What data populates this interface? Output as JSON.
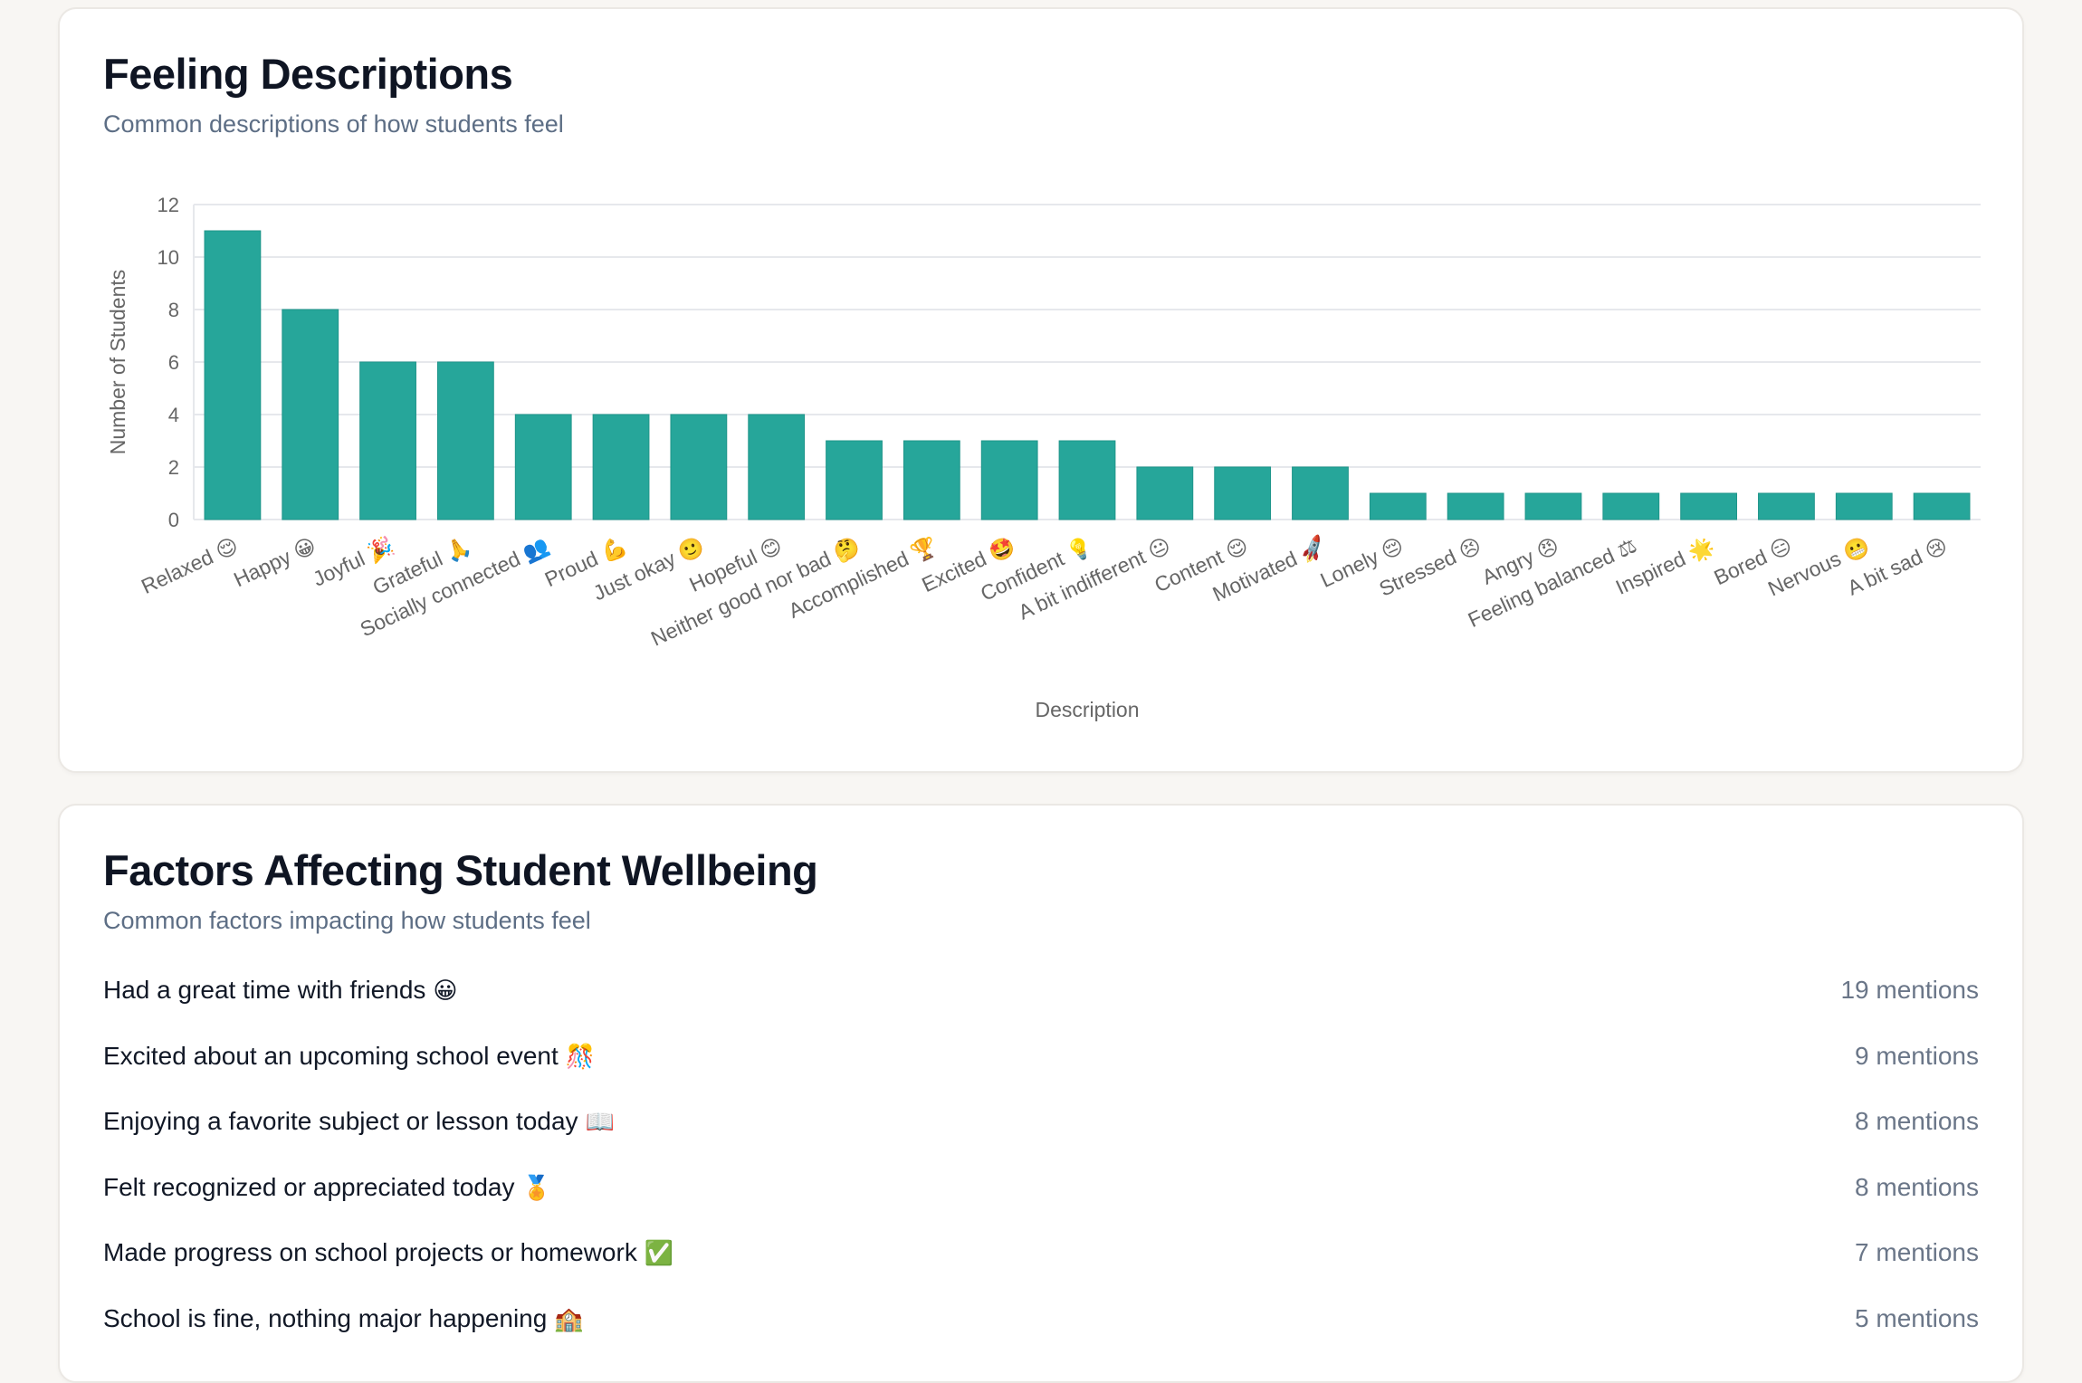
{
  "feeling_card": {
    "title": "Feeling Descriptions",
    "subtitle": "Common descriptions of how students feel"
  },
  "chart_data": {
    "type": "bar",
    "xlabel": "Description",
    "ylabel": "Number of Students",
    "ylim": [
      0,
      12
    ],
    "yticks": [
      0,
      2,
      4,
      6,
      8,
      10,
      12
    ],
    "grid": true,
    "bar_color": "#26a69a",
    "categories": [
      "Relaxed 😌",
      "Happy 😀",
      "Joyful 🎉",
      "Grateful 🙏",
      "Socially connected 👥",
      "Proud 💪",
      "Just okay 🙂",
      "Hopeful 😊",
      "Neither good nor bad 🤔",
      "Accomplished 🏆",
      "Excited 🤩",
      "Confident 💡",
      "A bit indifferent 😐",
      "Content 😌",
      "Motivated 🚀",
      "Lonely 😔",
      "Stressed 😣",
      "Angry 😠",
      "Feeling balanced ⚖",
      "Inspired 🌟",
      "Bored 😑",
      "Nervous 😬",
      "A bit sad 😢"
    ],
    "values": [
      11,
      8,
      6,
      6,
      4,
      4,
      4,
      4,
      3,
      3,
      3,
      3,
      2,
      2,
      2,
      1,
      1,
      1,
      1,
      1,
      1,
      1,
      1
    ]
  },
  "factors_card": {
    "title": "Factors Affecting Student Wellbeing",
    "subtitle": "Common factors impacting how students feel",
    "items": [
      {
        "label": "Had a great time with friends",
        "emoji": "😀",
        "count": "19 mentions"
      },
      {
        "label": "Excited about an upcoming school event",
        "emoji": "🎊",
        "count": "9 mentions"
      },
      {
        "label": "Enjoying a favorite subject or lesson today",
        "emoji": "📖",
        "count": "8 mentions"
      },
      {
        "label": "Felt recognized or appreciated today",
        "emoji": "🏅",
        "count": "8 mentions"
      },
      {
        "label": "Made progress on school projects or homework",
        "emoji": "✅",
        "count": "7 mentions"
      },
      {
        "label": "School is fine, nothing major happening",
        "emoji": "🏫",
        "count": "5 mentions"
      }
    ]
  }
}
